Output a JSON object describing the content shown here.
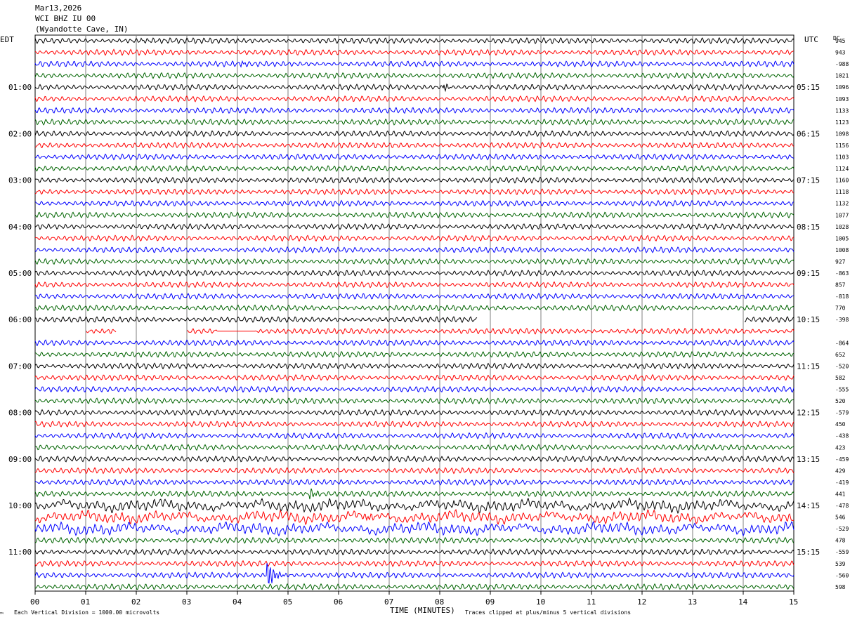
{
  "header": {
    "date": "Mar13,2026",
    "station": "WCI BHZ IU 00",
    "location": "(Wyandotte Cave, IN)",
    "left_zone": "EDT",
    "right_zone": "UTC",
    "dc_label": "DC"
  },
  "footer": {
    "scale_note": "Each Vertical Division = 1000.00 microvolts",
    "clip_note": "Traces clipped at plus/minus 5 vertical divisions",
    "corner_mark": "™"
  },
  "colors": {
    "cycle": [
      "#000000",
      "#ff0000",
      "#0000ff",
      "#006400"
    ],
    "grid": "#7f7f7f"
  },
  "chart_data": {
    "type": "helicorder",
    "xlabel": "TIME (MINUTES)",
    "x_ticks": [
      "00",
      "01",
      "02",
      "03",
      "04",
      "05",
      "06",
      "07",
      "08",
      "09",
      "10",
      "11",
      "12",
      "13",
      "14",
      "15"
    ],
    "minutes_per_line": 15,
    "line_count": 48,
    "left_hour_labels": [
      "01:00",
      "02:00",
      "03:00",
      "04:00",
      "05:00",
      "06:00",
      "07:00",
      "08:00",
      "09:00",
      "10:00",
      "11:00"
    ],
    "right_hour_labels": [
      "05:15",
      "06:15",
      "07:15",
      "08:15",
      "09:15",
      "10:15",
      "11:15",
      "12:15",
      "13:15",
      "14:15",
      "15:15"
    ],
    "dc_offsets": [
      "945",
      "943",
      "-988",
      "1021",
      "1096",
      "1093",
      "1133",
      "1123",
      "1098",
      "1156",
      "1103",
      "1124",
      "1160",
      "1118",
      "1132",
      "1077",
      "1028",
      "1005",
      "1008",
      "927",
      "-863",
      "857",
      "-818",
      "770",
      "-398",
      "",
      "-864",
      "652",
      "-520",
      "582",
      "-555",
      "520",
      "-579",
      "450",
      "-438",
      "423",
      "-459",
      "429",
      "-419",
      "441",
      "-478",
      "546",
      "-529",
      "478",
      "-559",
      "539",
      "-560",
      "598"
    ],
    "gaps": [
      {
        "line": 24,
        "from_min": 8.75,
        "to_min": 14.02
      },
      {
        "line": 25,
        "from_min": 0.0,
        "to_min": 1.0,
        "flat": false
      },
      {
        "line": 25,
        "from_min": 1.6,
        "to_min": 3.0,
        "flat": false
      },
      {
        "line": 25,
        "from_min": 3.6,
        "to_min": 4.35,
        "flat": true
      }
    ],
    "events": [
      {
        "line": 46,
        "minute": 4.6,
        "amplitude_divisions": 5
      },
      {
        "line": 39,
        "minute": 5.45,
        "amplitude_divisions": 1.4
      },
      {
        "line": 40,
        "minute": 8.3,
        "amplitude_divisions": 1.1
      },
      {
        "line": 41,
        "minute": 6.55,
        "amplitude_divisions": 0.9
      },
      {
        "line": 2,
        "minute": 4.1,
        "amplitude_divisions": 1.0
      },
      {
        "line": 0,
        "minute": 2.1,
        "amplitude_divisions": 0.8
      },
      {
        "line": 4,
        "minute": 8.1,
        "amplitude_divisions": 1.2
      }
    ]
  }
}
